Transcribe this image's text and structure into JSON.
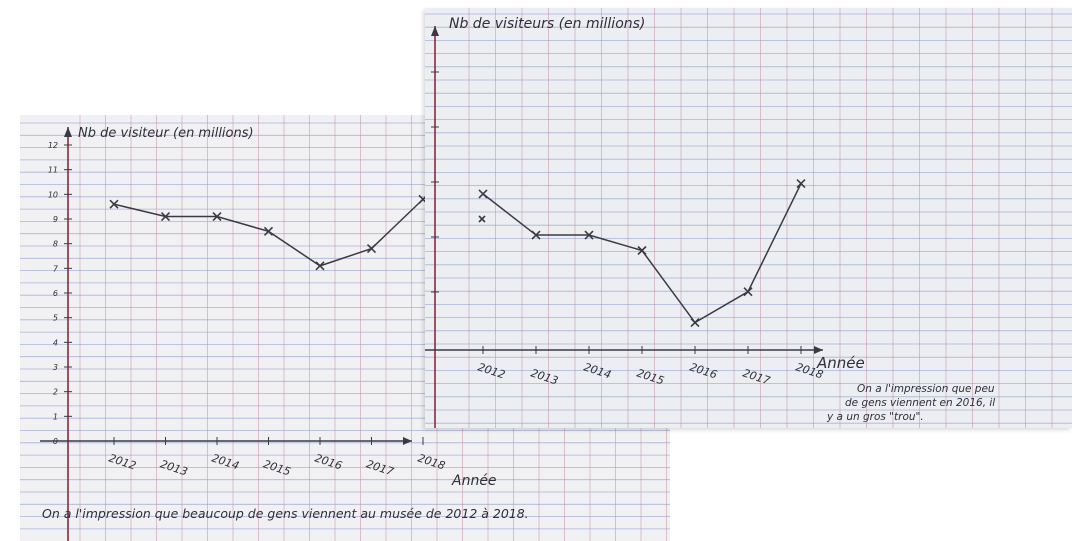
{
  "colors": {
    "ink": "#3a3a44",
    "axis": "#8a2a3a",
    "grid_h": "#a9b4d6",
    "grid_v": "#c48ca0",
    "paper_left": "#f1f1f3",
    "paper_right": "#eceef2"
  },
  "chart_data": [
    {
      "type": "line",
      "title": "",
      "ylabel": "Nb de visiteur (en millions)",
      "xlabel": "Année",
      "categories": [
        "2012",
        "2013",
        "2014",
        "2015",
        "2016",
        "2017",
        "2018"
      ],
      "yticks": [
        "0",
        "1",
        "2",
        "3",
        "4",
        "5",
        "6",
        "7",
        "8",
        "9",
        "10",
        "11",
        "12"
      ],
      "values": [
        9.6,
        9.1,
        9.1,
        8.5,
        7.1,
        7.8,
        9.8
      ],
      "ylim": [
        0,
        12
      ],
      "grid": true,
      "caption": "On a l'impression que beaucoup de gens viennent au musée de 2012 à 2018."
    },
    {
      "type": "line",
      "title": "",
      "ylabel": "Nb de visiteurs (en millions)",
      "xlabel": "Année",
      "categories": [
        "2012",
        "2013",
        "2014",
        "2015",
        "2016",
        "2017",
        "2018"
      ],
      "values": [
        9.0,
        8.2,
        8.2,
        7.9,
        6.5,
        7.1,
        9.2
      ],
      "ylim": [
        6.2,
        9.6
      ],
      "grid": true,
      "caption": "On a l'impression que peu de gens viennent en 2016, il y a un gros \"trou\"."
    }
  ]
}
